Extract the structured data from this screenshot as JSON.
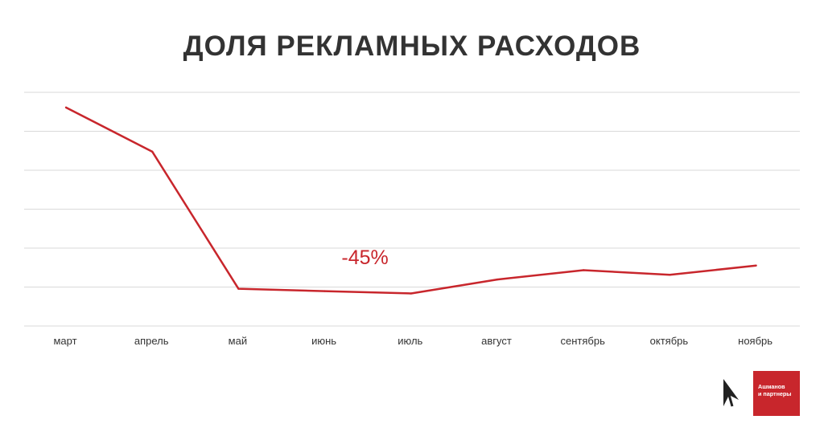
{
  "title": "ДОЛЯ РЕКЛАМНЫХ РАСХОДОВ",
  "chart_data": {
    "type": "line",
    "categories": [
      "март",
      "апрель",
      "май",
      "июнь",
      "июль",
      "август",
      "сентябрь",
      "октябрь",
      "ноябрь"
    ],
    "series": [
      {
        "values": [
          94,
          75,
          16,
          15,
          14,
          20,
          24,
          22,
          26
        ]
      }
    ],
    "ylim": [
      0,
      100
    ],
    "grid": true,
    "annotations": [
      {
        "text": "-45%",
        "category": "июнь",
        "y": 31
      }
    ],
    "line_color": "#c8262c"
  },
  "logo": {
    "line1": "Ашманов",
    "line2": "и партнеры",
    "color": "#c8262c"
  }
}
